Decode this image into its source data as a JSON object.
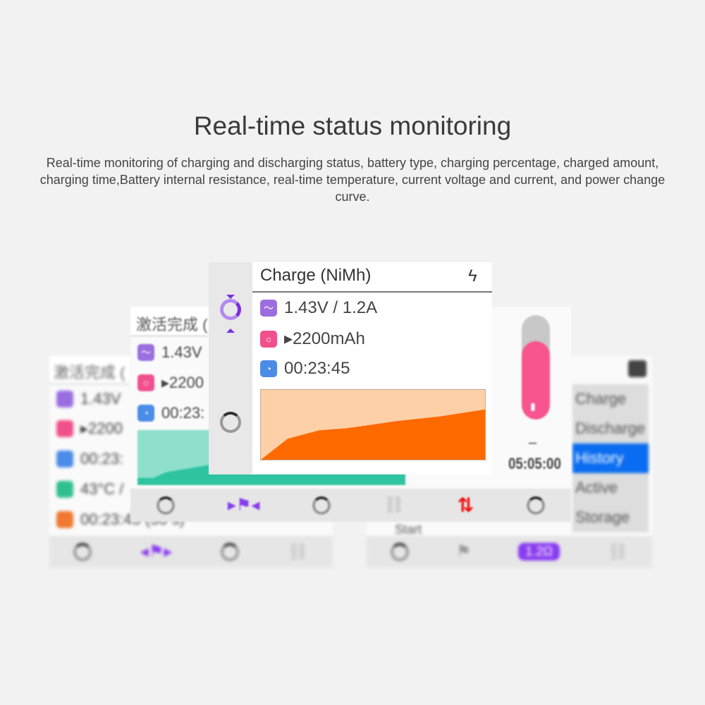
{
  "heading": "Real-time status monitoring",
  "description": "Real-time monitoring of charging and discharging status, battery type, charging percentage, charged amount, charging time,Battery internal resistance, real-time temperature, current voltage and current, and power change curve.",
  "back_left": {
    "title": "激活完成 (",
    "rows": [
      "1.43V",
      "▸2200",
      "00:23:",
      "43°C /",
      "00:23:45 (30 s)"
    ],
    "colors": [
      "#9b6ee0",
      "#f0508c",
      "#4a8ce8",
      "#30c090",
      "#f07830"
    ]
  },
  "back_right": {
    "menu": [
      "Charge",
      "Discharge",
      "History",
      "Active",
      "Storage"
    ],
    "selected": "History",
    "start_label": "Start",
    "nav_badge": "1.2Ω"
  },
  "middle": {
    "title": "激活完成 (",
    "rows": [
      "1.43V",
      "▸2200",
      "00:23:"
    ],
    "gauge_level_percent": 75,
    "gauge_dash": "–",
    "timer": "05:05:00",
    "accent": "#2ec4a0"
  },
  "front": {
    "title": "Charge (NiMh)",
    "voltage_current": "1.43V / 1.2A",
    "capacity": "▸2200mAh",
    "elapsed": "00:23:45",
    "chart_fill": "#ff6a00",
    "chart_bg": "#fdd0a8",
    "power_curve_percent": [
      0,
      30,
      42,
      45,
      48,
      55,
      62,
      72
    ]
  },
  "icons": [
    "bolt-icon",
    "chart-icon",
    "capacity-icon",
    "clock-icon",
    "spinner-icon",
    "flag-icon",
    "link-icon",
    "swap-arrows-icon",
    "toolbox-icon"
  ]
}
